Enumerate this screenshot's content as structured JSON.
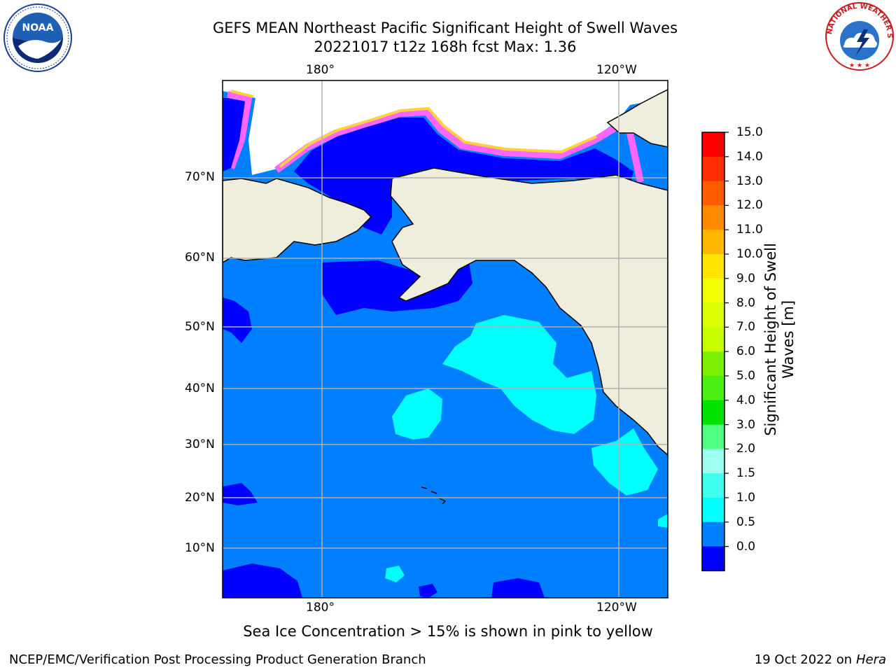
{
  "header": {
    "title_line1": "GEFS MEAN Northeast Pacific Significant Height of Swell Waves",
    "title_line2": "20221017 t12z 168h fcst   Max: 1.36"
  },
  "logos": {
    "noaa_text": "NOAA",
    "nws_text": "NATIONAL WEATHER SERVICE"
  },
  "map": {
    "top_lon_labels": [
      "180°",
      "120°W"
    ],
    "bottom_lon_labels": [
      "180°",
      "120°W"
    ],
    "lat_labels": [
      "70°N",
      "60°N",
      "50°N",
      "40°N",
      "30°N",
      "20°N",
      "10°N"
    ],
    "colors": {
      "land": "#efeedd",
      "ocean_0_05": "#0000ff",
      "ocean_05_1": "#0080ff",
      "ocean_1_15": "#00ffff",
      "ocean_15_2": "#40ffec",
      "ice_pink": "#ff66ff",
      "ice_yellow": "#ffd040"
    }
  },
  "colorbar": {
    "ticks": [
      "15.0",
      "14.0",
      "13.0",
      "12.0",
      "11.0",
      "10.0",
      "9.0",
      "8.0",
      "7.0",
      "6.0",
      "5.0",
      "4.0",
      "3.0",
      "2.0",
      "1.5",
      "1.0",
      "0.5",
      "0.0"
    ],
    "segment_colors": [
      "#fe0000",
      "#ff2e00",
      "#ff5c00",
      "#ff8a00",
      "#ffb700",
      "#ffe400",
      "#f2ff00",
      "#dcff00",
      "#c5ff00",
      "#7aef00",
      "#4bef12",
      "#00e300",
      "#4eff83",
      "#9dfff1",
      "#40ffec",
      "#00ffff",
      "#0080ff",
      "#0000ff"
    ],
    "label_line1": "Significant Height of Swell",
    "label_line2": "Waves [m]"
  },
  "footer": {
    "note": "Sea Ice Concentration > 15% is shown in pink to yellow",
    "left": "NCEP/EMC/Verification Post Processing Product Generation Branch",
    "right_prefix": "19 Oct 2022 on ",
    "right_host": "Hera"
  }
}
